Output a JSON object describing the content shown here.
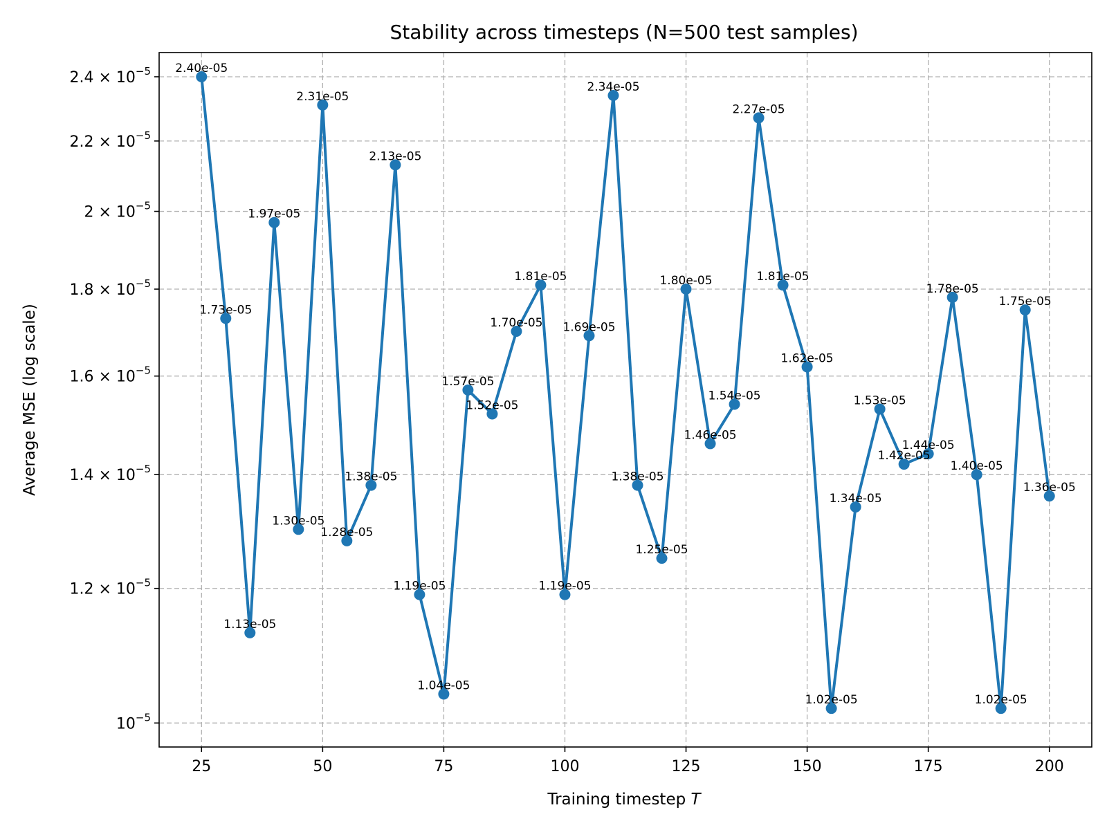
{
  "chart_data": {
    "type": "line",
    "title": "Stability across timesteps (N=500 test samples)",
    "xlabel": "Training timestep",
    "xlabel_var": "T",
    "ylabel": "Average MSE (log scale)",
    "y_scale": "log",
    "grid": true,
    "line_color": "#1f77b4",
    "xlim": [
      16.25,
      208.75
    ],
    "ylim": [
      9.68e-06,
      2.48e-05
    ],
    "x_ticks": [
      {
        "value": 25,
        "label": "25"
      },
      {
        "value": 50,
        "label": "50"
      },
      {
        "value": 75,
        "label": "75"
      },
      {
        "value": 100,
        "label": "100"
      },
      {
        "value": 125,
        "label": "125"
      },
      {
        "value": 150,
        "label": "150"
      },
      {
        "value": 175,
        "label": "175"
      },
      {
        "value": 200,
        "label": "200"
      }
    ],
    "y_ticks": [
      {
        "value": 1e-05,
        "mant": "10",
        "exp": "−5"
      },
      {
        "value": 1.2e-05,
        "mant": "1.2 × 10",
        "exp": "−5"
      },
      {
        "value": 1.4e-05,
        "mant": "1.4 × 10",
        "exp": "−5"
      },
      {
        "value": 1.6e-05,
        "mant": "1.6 × 10",
        "exp": "−5"
      },
      {
        "value": 1.8e-05,
        "mant": "1.8 × 10",
        "exp": "−5"
      },
      {
        "value": 2e-05,
        "mant": "2 × 10",
        "exp": "−5"
      },
      {
        "value": 2.2e-05,
        "mant": "2.2 × 10",
        "exp": "−5"
      },
      {
        "value": 2.4e-05,
        "mant": "2.4 × 10",
        "exp": "−5"
      }
    ],
    "points": [
      {
        "x": 25,
        "y": 2.4e-05,
        "label": "2.40e-05"
      },
      {
        "x": 30,
        "y": 1.73e-05,
        "label": "1.73e-05"
      },
      {
        "x": 35,
        "y": 1.13e-05,
        "label": "1.13e-05"
      },
      {
        "x": 40,
        "y": 1.97e-05,
        "label": "1.97e-05"
      },
      {
        "x": 45,
        "y": 1.3e-05,
        "label": "1.30e-05"
      },
      {
        "x": 50,
        "y": 2.31e-05,
        "label": "2.31e-05"
      },
      {
        "x": 55,
        "y": 1.28e-05,
        "label": "1.28e-05"
      },
      {
        "x": 60,
        "y": 1.38e-05,
        "label": "1.38e-05"
      },
      {
        "x": 65,
        "y": 2.13e-05,
        "label": "2.13e-05"
      },
      {
        "x": 70,
        "y": 1.19e-05,
        "label": "1.19e-05"
      },
      {
        "x": 75,
        "y": 1.04e-05,
        "label": "1.04e-05"
      },
      {
        "x": 80,
        "y": 1.57e-05,
        "label": "1.57e-05"
      },
      {
        "x": 85,
        "y": 1.52e-05,
        "label": "1.52e-05"
      },
      {
        "x": 90,
        "y": 1.7e-05,
        "label": "1.70e-05"
      },
      {
        "x": 95,
        "y": 1.81e-05,
        "label": "1.81e-05"
      },
      {
        "x": 100,
        "y": 1.19e-05,
        "label": "1.19e-05"
      },
      {
        "x": 105,
        "y": 1.69e-05,
        "label": "1.69e-05"
      },
      {
        "x": 110,
        "y": 2.34e-05,
        "label": "2.34e-05"
      },
      {
        "x": 115,
        "y": 1.38e-05,
        "label": "1.38e-05"
      },
      {
        "x": 120,
        "y": 1.25e-05,
        "label": "1.25e-05"
      },
      {
        "x": 125,
        "y": 1.8e-05,
        "label": "1.80e-05"
      },
      {
        "x": 130,
        "y": 1.46e-05,
        "label": "1.46e-05"
      },
      {
        "x": 135,
        "y": 1.54e-05,
        "label": "1.54e-05"
      },
      {
        "x": 140,
        "y": 2.27e-05,
        "label": "2.27e-05"
      },
      {
        "x": 145,
        "y": 1.81e-05,
        "label": "1.81e-05"
      },
      {
        "x": 150,
        "y": 1.62e-05,
        "label": "1.62e-05"
      },
      {
        "x": 155,
        "y": 1.02e-05,
        "label": "1.02e-05"
      },
      {
        "x": 160,
        "y": 1.34e-05,
        "label": "1.34e-05"
      },
      {
        "x": 165,
        "y": 1.53e-05,
        "label": "1.53e-05"
      },
      {
        "x": 170,
        "y": 1.42e-05,
        "label": "1.42e-05"
      },
      {
        "x": 175,
        "y": 1.44e-05,
        "label": "1.44e-05"
      },
      {
        "x": 180,
        "y": 1.78e-05,
        "label": "1.78e-05"
      },
      {
        "x": 185,
        "y": 1.4e-05,
        "label": "1.40e-05"
      },
      {
        "x": 190,
        "y": 1.02e-05,
        "label": "1.02e-05"
      },
      {
        "x": 195,
        "y": 1.75e-05,
        "label": "1.75e-05"
      },
      {
        "x": 200,
        "y": 1.36e-05,
        "label": "1.36e-05"
      }
    ]
  }
}
